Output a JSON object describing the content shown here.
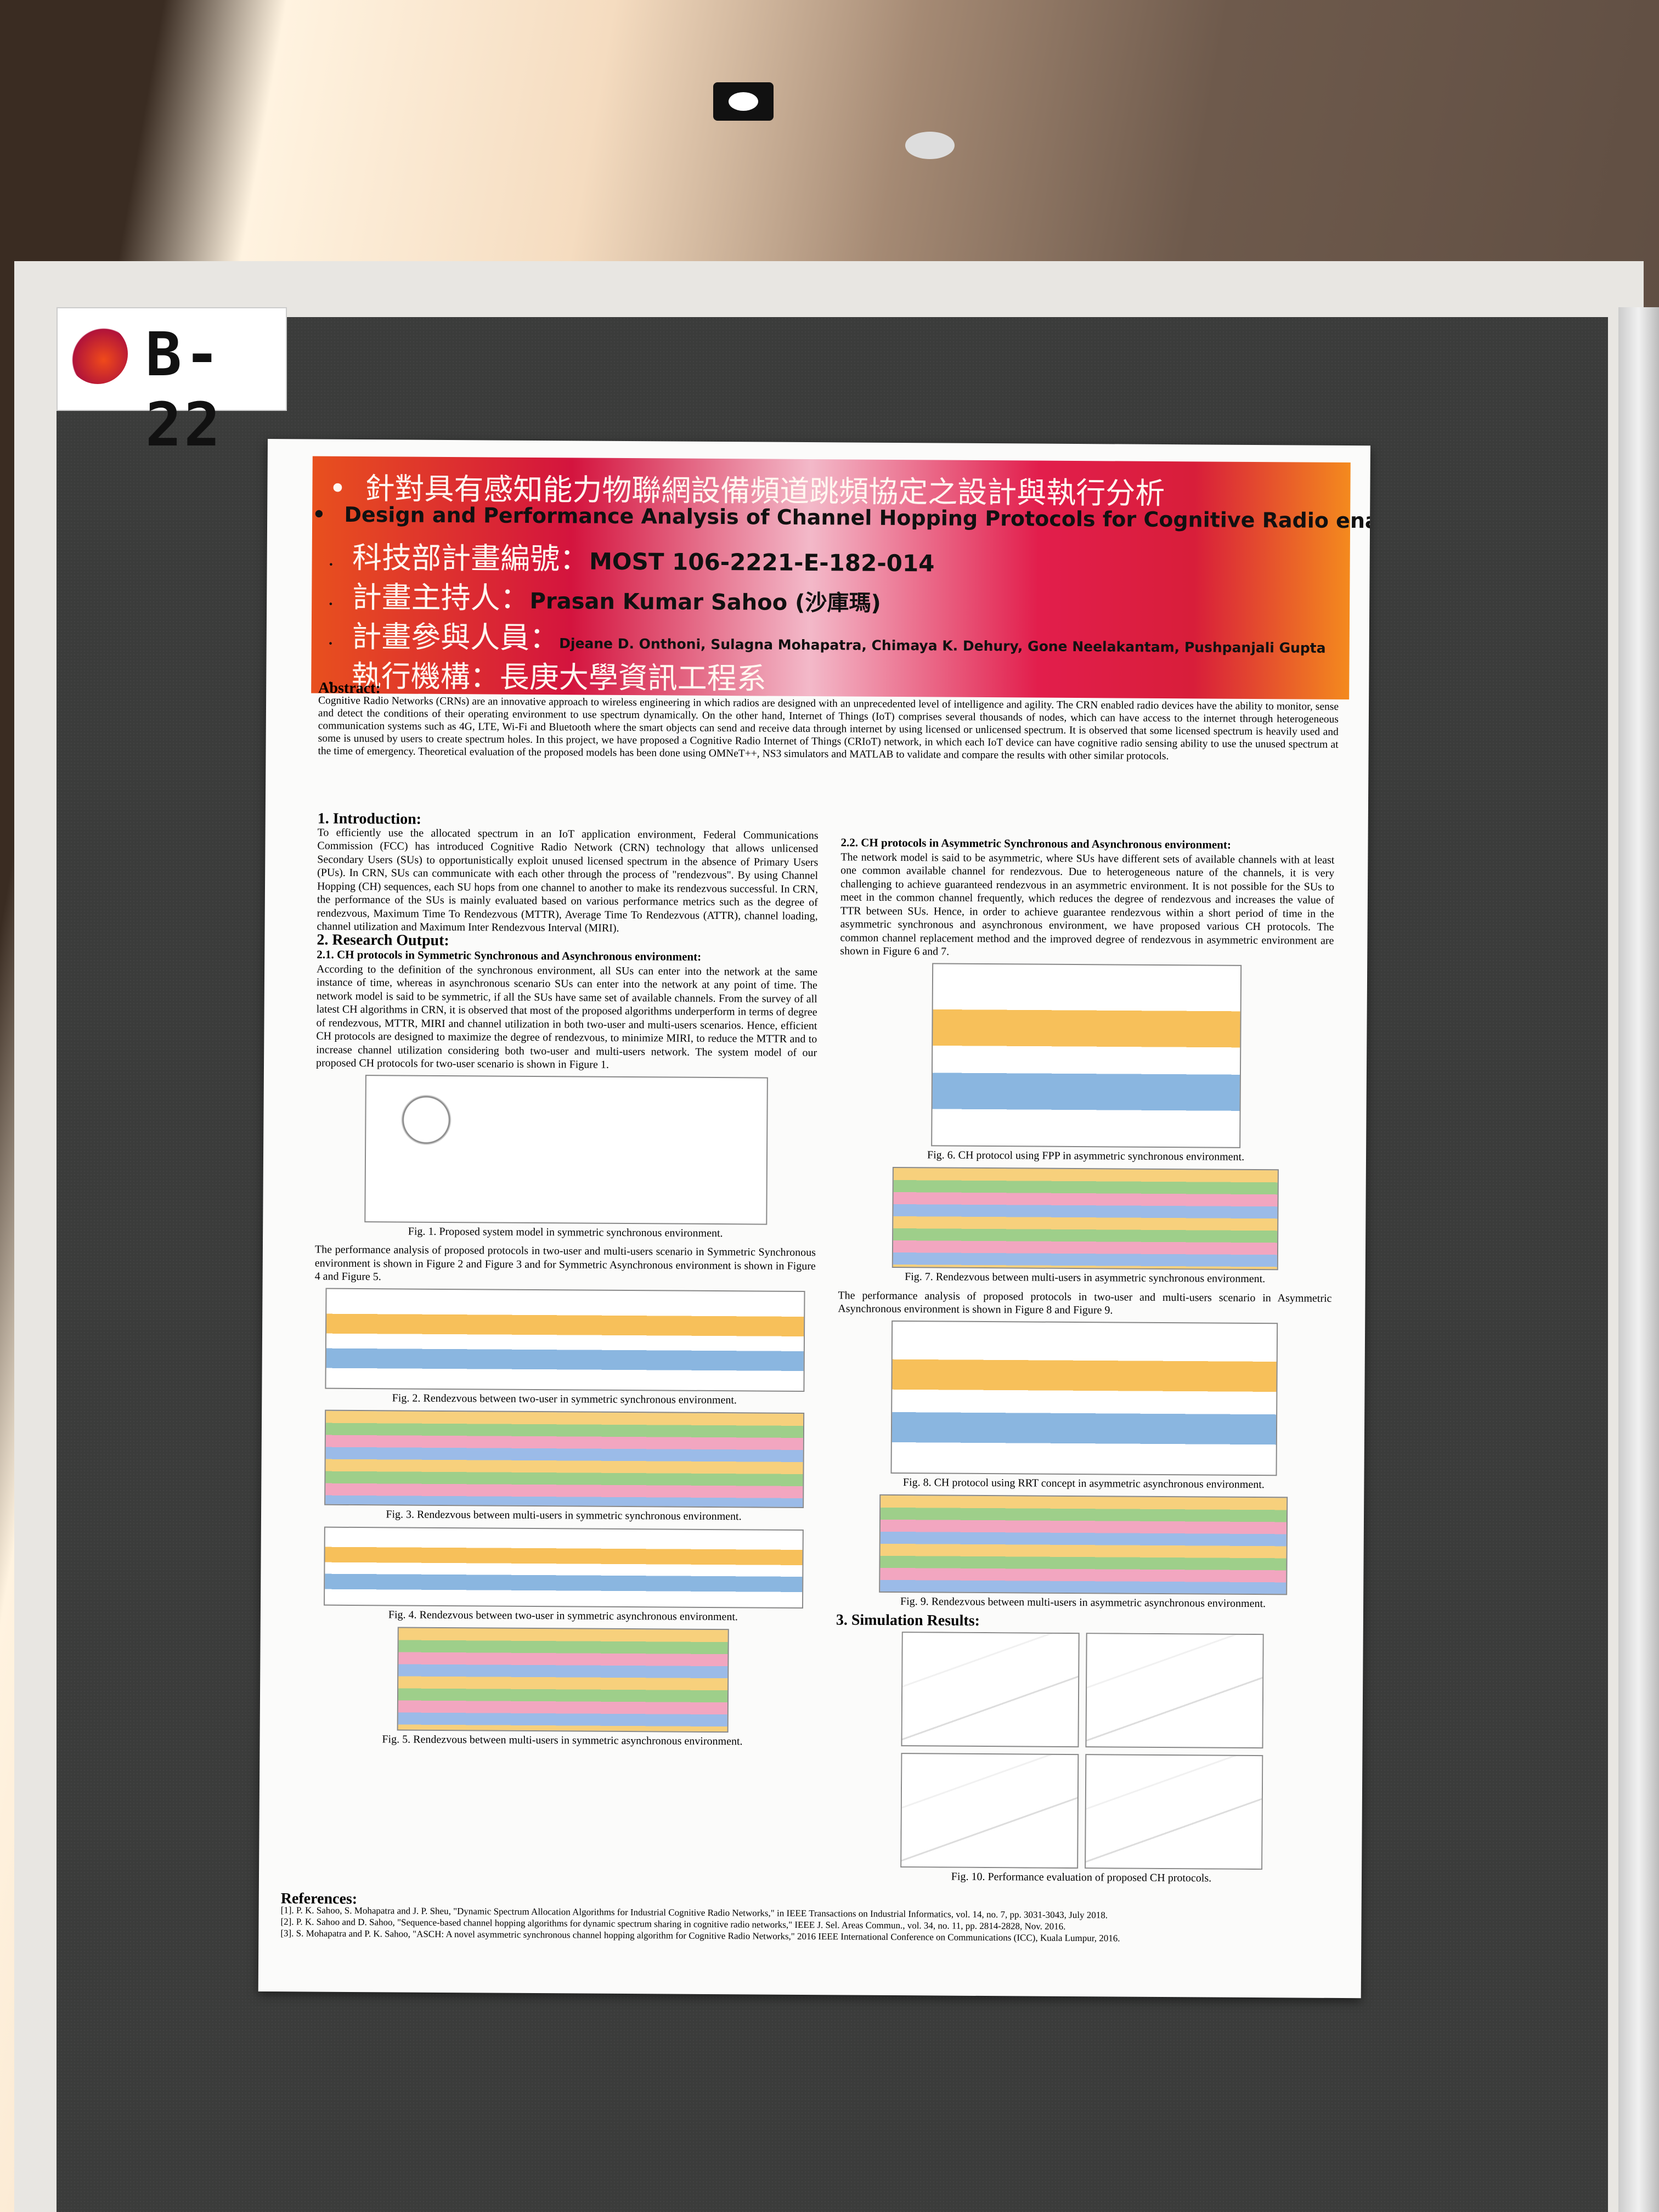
{
  "booth_label": "B-22",
  "header": {
    "title_zh": "針對具有感知能力物聯網設備頻道跳頻協定之設計與執行分析",
    "title_en": "Design and Performance Analysis of Channel Hopping Protocols for Cognitive Radio enabled IoT Devices",
    "project_label": "科技部計畫編號：",
    "project_id": "MOST 106-2221-E-182-014",
    "pi_label": "計畫主持人：",
    "pi": "Prasan Kumar Sahoo (沙庫瑪)",
    "members_label": "計畫參與人員：",
    "members": "Djeane D. Onthoni, Sulagna Mohapatra, Chimaya K. Dehury, Gone Neelakantam, Pushpanjali Gupta",
    "institution_label": "執行機構：",
    "institution": "長庚大學資訊工程系"
  },
  "abstract": {
    "heading": "Abstract:",
    "text": "Cognitive Radio Networks (CRNs) are an innovative approach to wireless engineering in which radios are designed with an unprecedented level of intelligence and agility. The CRN enabled radio devices have the ability to monitor, sense and detect the conditions of their operating environment to use spectrum dynamically. On the other hand, Internet of Things (IoT) comprises several thousands of nodes, which can have access to the internet through heterogeneous communication systems such as 4G, LTE, Wi-Fi and Bluetooth where the smart objects can send and receive data through internet by using licensed or unlicensed spectrum. It is observed that some licensed spectrum is heavily used and some is unused by users to create spectrum holes. In this project, we have proposed a Cognitive Radio Internet of Things (CRIoT) network, in which each IoT device can have cognitive radio sensing ability to use the unused spectrum at the time of emergency. Theoretical evaluation of the proposed models has been done using OMNeT++, NS3 simulators and MATLAB to validate and compare the results with other similar protocols."
  },
  "introduction": {
    "heading": "1. Introduction:",
    "text": "To efficiently use the allocated spectrum in an IoT application environment, Federal Communications Commission (FCC) has introduced Cognitive Radio Network (CRN) technology that allows unlicensed Secondary Users (SUs) to opportunistically exploit unused licensed spectrum in the absence of Primary Users (PUs). In CRN, SUs can communicate with each other through the process of \"rendezvous\". By using Channel Hopping (CH) sequences, each SU hops from one channel to another to make its rendezvous successful. In CRN, the performance of the SUs is mainly evaluated based on various performance metrics such as the degree of rendezvous, Maximum Time To Rendezvous (MTTR), Average Time To Rendezvous (ATTR), channel loading, channel utilization and Maximum Inter Rendezvous Interval (MIRI)."
  },
  "research": {
    "heading": "2. Research Output:",
    "symmetric": {
      "heading": "2.1. CH protocols in Symmetric Synchronous and Asynchronous environment:",
      "text": "According to the definition of the synchronous environment, all SUs can enter into the network at the same instance of time, whereas in asynchronous scenario SUs can enter into the network at any point of time. The network model is said to be symmetric, if all the SUs have same set of available channels. From the survey of all latest CH algorithms in CRN, it is observed that most of the proposed algorithms underperform in terms of degree of rendezvous, MTTR, MIRI and channel utilization in both two-user and multi-users scenarios. Hence, efficient CH protocols are designed to maximize the degree of rendezvous, to minimize MIRI, to reduce the MTTR and to increase channel utilization considering both two-user and multi-users network. The system model of our proposed CH protocols for two-user scenario is shown in Figure 1.",
      "fig1": "Fig. 1. Proposed system model in symmetric synchronous environment.",
      "text2": "The performance analysis of proposed protocols in two-user and multi-users scenario in Symmetric Synchronous environment is shown in Figure 2 and Figure 3 and for Symmetric Asynchronous environment is shown in Figure 4 and Figure 5.",
      "fig2": "Fig. 2. Rendezvous between two-user in symmetric synchronous environment.",
      "fig3": "Fig. 3. Rendezvous between multi-users in symmetric synchronous environment.",
      "fig4": "Fig. 4. Rendezvous between two-user in symmetric asynchronous environment.",
      "fig5": "Fig. 5. Rendezvous between multi-users in symmetric asynchronous environment."
    },
    "asymmetric": {
      "heading": "2.2. CH protocols in Asymmetric Synchronous and Asynchronous environment:",
      "text": "The network model is said to be asymmetric, where SUs have different sets of available channels with at least one common available channel for rendezvous. Due to heterogeneous nature of the channels, it is very challenging to achieve guaranteed rendezvous in an asymmetric environment. It is not possible for the SUs to meet in the common channel frequently, which reduces the degree of rendezvous and increases the value of TTR between SUs. Hence, in order to achieve guarantee rendezvous within a short period of time in the asymmetric synchronous and asynchronous environment, we have proposed various CH protocols. The common channel replacement method and the improved degree of rendezvous in asymmetric environment are shown in Figure 6 and 7.",
      "fig6": "Fig. 6. CH protocol using FPP in asymmetric synchronous environment.",
      "fig7": "Fig. 7. Rendezvous between multi-users in asymmetric synchronous environment.",
      "text2": "The performance analysis of proposed protocols in two-user and multi-users scenario in Asymmetric Asynchronous environment is shown in Figure 8 and Figure 9.",
      "fig8": "Fig. 8. CH protocol using RRT concept in asymmetric asynchronous environment.",
      "fig9": "Fig. 9. Rendezvous between multi-users in asymmetric asynchronous environment."
    }
  },
  "simulation": {
    "heading": "3. Simulation Results:",
    "fig10": "Fig. 10. Performance evaluation of proposed CH protocols."
  },
  "references": {
    "heading": "References:",
    "items": [
      "[1]. P. K. Sahoo, S. Mohapatra and J. P. Sheu, \"Dynamic Spectrum Allocation Algorithms for Industrial Cognitive Radio Networks,\" in IEEE Transactions on Industrial Informatics, vol. 14, no. 7, pp. 3031-3043, July 2018.",
      "[2]. P. K. Sahoo and D. Sahoo, \"Sequence-based channel hopping algorithms for dynamic spectrum sharing in cognitive radio networks,\" IEEE J. Sel. Areas Commun., vol. 34, no. 11, pp. 2814-2828, Nov. 2016.",
      "[3]. S. Mohapatra and P. K. Sahoo, \"ASCH: A novel asymmetric synchronous channel hopping algorithm for Cognitive Radio Networks,\" 2016 IEEE International Conference on Communications (ICC), Kuala Lumpur, 2016."
    ]
  }
}
